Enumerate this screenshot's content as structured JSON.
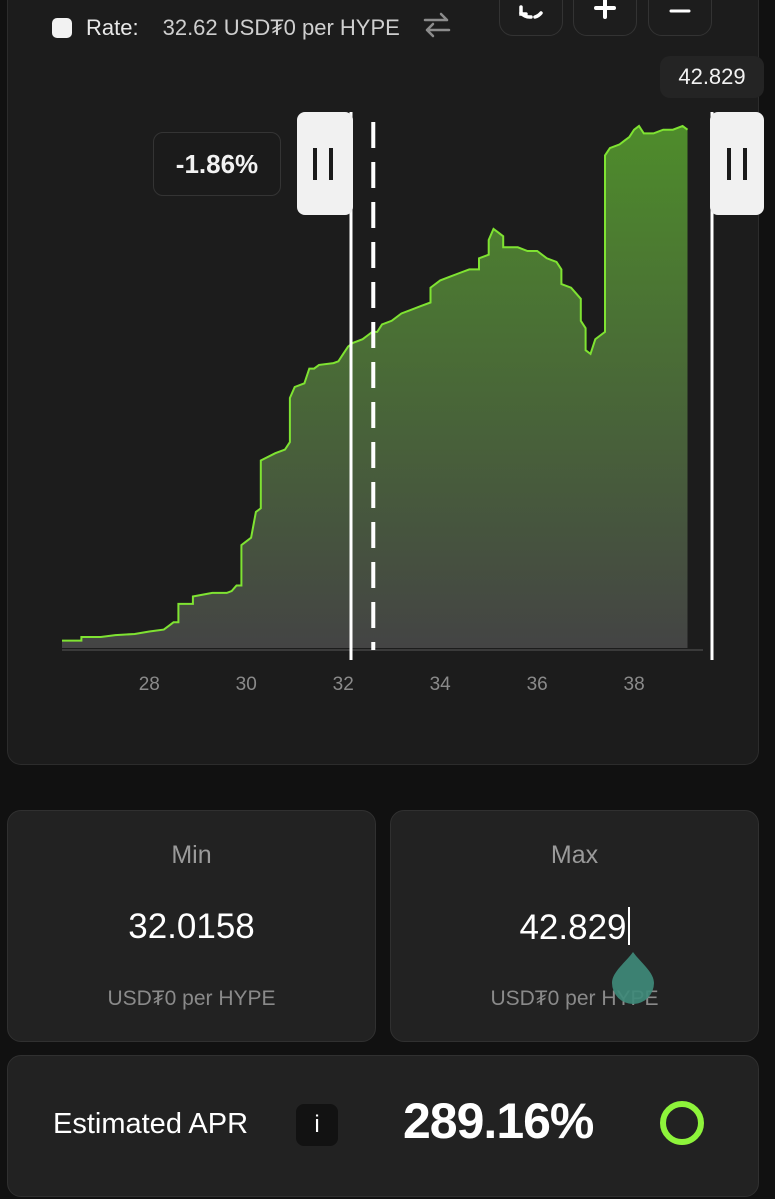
{
  "rate": {
    "label": "Rate:",
    "value": "32.62 USD₮0 per HYPE"
  },
  "chart": {
    "max_tag": "42.829",
    "range_percent_tag": "-1.86%",
    "x_ticks": [
      "28",
      "30",
      "32",
      "34",
      "36",
      "38"
    ],
    "x_range": [
      26.2,
      39.4
    ],
    "current_price": 32.62,
    "min_handle_price": 32.0158,
    "line_color": "#7fe332",
    "fill_top": "#4e8c2b",
    "fill_bottom": "#444444",
    "depth": [
      [
        26.2,
        2
      ],
      [
        26.6,
        2
      ],
      [
        26.6,
        3
      ],
      [
        27.0,
        3
      ],
      [
        27.3,
        3.5
      ],
      [
        27.7,
        3.8
      ],
      [
        28.0,
        4.5
      ],
      [
        28.3,
        5
      ],
      [
        28.4,
        6
      ],
      [
        28.5,
        7
      ],
      [
        28.6,
        7
      ],
      [
        28.6,
        12
      ],
      [
        28.9,
        12
      ],
      [
        28.9,
        14
      ],
      [
        29.3,
        15
      ],
      [
        29.6,
        15
      ],
      [
        29.7,
        15.5
      ],
      [
        29.8,
        17
      ],
      [
        29.9,
        17
      ],
      [
        29.9,
        28
      ],
      [
        30.0,
        29
      ],
      [
        30.1,
        30
      ],
      [
        30.2,
        37
      ],
      [
        30.3,
        38
      ],
      [
        30.3,
        51
      ],
      [
        30.6,
        53
      ],
      [
        30.8,
        54
      ],
      [
        30.9,
        56
      ],
      [
        30.9,
        68
      ],
      [
        31.0,
        71
      ],
      [
        31.2,
        72
      ],
      [
        31.3,
        76
      ],
      [
        31.4,
        76
      ],
      [
        31.5,
        77
      ],
      [
        31.8,
        77.5
      ],
      [
        31.9,
        78
      ],
      [
        32.0,
        80
      ],
      [
        32.1,
        82
      ],
      [
        32.2,
        83
      ],
      [
        32.4,
        84
      ],
      [
        32.5,
        85
      ],
      [
        32.6,
        86
      ],
      [
        32.7,
        86
      ],
      [
        32.8,
        88
      ],
      [
        33.0,
        89
      ],
      [
        33.2,
        91
      ],
      [
        33.4,
        92
      ],
      [
        33.6,
        93
      ],
      [
        33.8,
        94
      ],
      [
        33.8,
        98
      ],
      [
        34.0,
        100
      ],
      [
        34.2,
        101
      ],
      [
        34.4,
        102
      ],
      [
        34.6,
        103
      ],
      [
        34.8,
        103
      ],
      [
        34.8,
        106
      ],
      [
        35.0,
        107
      ],
      [
        35.0,
        111
      ],
      [
        35.1,
        114
      ],
      [
        35.2,
        113
      ],
      [
        35.3,
        112
      ],
      [
        35.3,
        109
      ],
      [
        35.6,
        109
      ],
      [
        35.8,
        108
      ],
      [
        36.0,
        108
      ],
      [
        36.2,
        106
      ],
      [
        36.4,
        105
      ],
      [
        36.5,
        103
      ],
      [
        36.5,
        99
      ],
      [
        36.7,
        98
      ],
      [
        36.9,
        95
      ],
      [
        36.9,
        89
      ],
      [
        37.0,
        87
      ],
      [
        37.0,
        81
      ],
      [
        37.1,
        80
      ],
      [
        37.2,
        84
      ],
      [
        37.3,
        85
      ],
      [
        37.4,
        86
      ],
      [
        37.4,
        134
      ],
      [
        37.5,
        136
      ],
      [
        37.7,
        137
      ],
      [
        37.8,
        138
      ],
      [
        37.9,
        139
      ],
      [
        38.0,
        141
      ],
      [
        38.1,
        142
      ],
      [
        38.2,
        140
      ],
      [
        38.4,
        140
      ],
      [
        38.6,
        141
      ],
      [
        38.8,
        141
      ],
      [
        39.0,
        142
      ],
      [
        39.1,
        141
      ],
      [
        39.1,
        141
      ]
    ]
  },
  "min_card": {
    "title": "Min",
    "value": "32.0158",
    "unit": "USD₮0 per HYPE"
  },
  "max_card": {
    "title": "Max",
    "value": "42.829",
    "unit": "USD₮0 per HYPE"
  },
  "apr": {
    "label": "Estimated APR",
    "info": "i",
    "value": "289.16%",
    "ring_color": "#8ef43b"
  }
}
